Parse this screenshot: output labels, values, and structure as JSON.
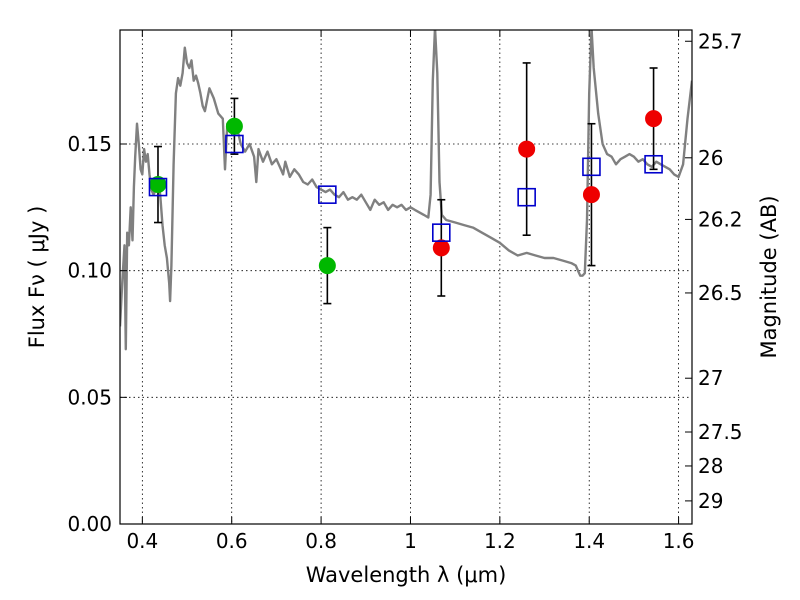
{
  "chart_data": {
    "type": "scatter",
    "xlabel": "Wavelength  λ (μm)",
    "ylabel": "Flux  Fν  ( μJy )",
    "ylabel_right": "Magnitude (AB)",
    "xlim": [
      0.35,
      1.63
    ],
    "ylim": [
      0.0,
      0.195
    ],
    "grid": true,
    "x_ticks": [
      0.4,
      0.6,
      0.8,
      1.0,
      1.2,
      1.4,
      1.6
    ],
    "x_tick_labels": [
      "0.4",
      "0.6",
      "0.8",
      "1",
      "1.2",
      "1.4",
      "1.6"
    ],
    "y_ticks": [
      0.0,
      0.05,
      0.1,
      0.15
    ],
    "y_tick_labels": [
      "0.00",
      "0.05",
      "0.10",
      "0.15"
    ],
    "right_ticks": [
      {
        "label": "25.7",
        "mag": 25.7
      },
      {
        "label": "26",
        "mag": 26.0
      },
      {
        "label": "26.2",
        "mag": 26.2
      },
      {
        "label": "26.5",
        "mag": 26.5
      },
      {
        "label": "27",
        "mag": 27.0
      },
      {
        "label": "27.5",
        "mag": 27.5
      },
      {
        "label": "28",
        "mag": 28.0
      },
      {
        "label": "29",
        "mag": 29.0
      }
    ],
    "colors": {
      "sed": "#808080",
      "green": "#00b800",
      "red": "#ee0000",
      "model": "#0000cc",
      "errorbar": "#000000"
    },
    "observed_points": [
      {
        "x": 0.435,
        "y": 0.134,
        "err": 0.015,
        "color": "green"
      },
      {
        "x": 0.606,
        "y": 0.157,
        "err": 0.011,
        "color": "green"
      },
      {
        "x": 0.814,
        "y": 0.102,
        "err": 0.015,
        "color": "green"
      },
      {
        "x": 1.069,
        "y": 0.109,
        "err": 0.019,
        "color": "red"
      },
      {
        "x": 1.26,
        "y": 0.148,
        "err": 0.034,
        "color": "red"
      },
      {
        "x": 1.405,
        "y": 0.13,
        "err": 0.028,
        "color": "red"
      },
      {
        "x": 1.544,
        "y": 0.16,
        "err": 0.02,
        "color": "red"
      }
    ],
    "model_points": [
      {
        "x": 0.435,
        "y": 0.133
      },
      {
        "x": 0.606,
        "y": 0.15
      },
      {
        "x": 0.814,
        "y": 0.13
      },
      {
        "x": 1.069,
        "y": 0.115
      },
      {
        "x": 1.26,
        "y": 0.129
      },
      {
        "x": 1.405,
        "y": 0.141
      },
      {
        "x": 1.544,
        "y": 0.142
      }
    ],
    "sed": {
      "x": [
        0.35,
        0.355,
        0.36,
        0.363,
        0.366,
        0.37,
        0.374,
        0.378,
        0.381,
        0.384,
        0.388,
        0.392,
        0.396,
        0.4,
        0.404,
        0.408,
        0.412,
        0.416,
        0.42,
        0.425,
        0.43,
        0.435,
        0.44,
        0.445,
        0.45,
        0.455,
        0.46,
        0.462,
        0.465,
        0.47,
        0.475,
        0.48,
        0.485,
        0.49,
        0.495,
        0.5,
        0.505,
        0.51,
        0.515,
        0.52,
        0.525,
        0.53,
        0.535,
        0.54,
        0.55,
        0.56,
        0.57,
        0.58,
        0.585,
        0.59,
        0.6,
        0.61,
        0.62,
        0.63,
        0.64,
        0.65,
        0.655,
        0.66,
        0.67,
        0.68,
        0.69,
        0.7,
        0.71,
        0.715,
        0.72,
        0.73,
        0.74,
        0.75,
        0.76,
        0.77,
        0.78,
        0.79,
        0.8,
        0.81,
        0.82,
        0.83,
        0.84,
        0.85,
        0.86,
        0.87,
        0.88,
        0.89,
        0.9,
        0.91,
        0.92,
        0.93,
        0.94,
        0.95,
        0.96,
        0.97,
        0.98,
        0.99,
        1.0,
        1.01,
        1.02,
        1.03,
        1.04,
        1.045,
        1.05,
        1.055,
        1.06,
        1.065,
        1.07,
        1.08,
        1.1,
        1.12,
        1.14,
        1.16,
        1.18,
        1.2,
        1.22,
        1.24,
        1.26,
        1.28,
        1.3,
        1.32,
        1.34,
        1.36,
        1.37,
        1.375,
        1.38,
        1.385,
        1.39,
        1.395,
        1.4,
        1.405,
        1.41,
        1.42,
        1.43,
        1.44,
        1.45,
        1.46,
        1.47,
        1.48,
        1.49,
        1.5,
        1.51,
        1.52,
        1.53,
        1.54,
        1.55,
        1.56,
        1.57,
        1.58,
        1.59,
        1.6,
        1.61,
        1.62,
        1.63
      ],
      "y": [
        0.078,
        0.095,
        0.11,
        0.069,
        0.115,
        0.11,
        0.125,
        0.112,
        0.133,
        0.145,
        0.158,
        0.15,
        0.14,
        0.138,
        0.148,
        0.143,
        0.146,
        0.138,
        0.132,
        0.13,
        0.132,
        0.135,
        0.13,
        0.118,
        0.11,
        0.105,
        0.095,
        0.088,
        0.102,
        0.142,
        0.17,
        0.176,
        0.173,
        0.178,
        0.188,
        0.182,
        0.18,
        0.183,
        0.175,
        0.177,
        0.174,
        0.17,
        0.165,
        0.163,
        0.172,
        0.168,
        0.162,
        0.16,
        0.14,
        0.158,
        0.157,
        0.158,
        0.15,
        0.147,
        0.15,
        0.145,
        0.135,
        0.148,
        0.143,
        0.147,
        0.142,
        0.144,
        0.14,
        0.138,
        0.143,
        0.137,
        0.14,
        0.138,
        0.135,
        0.134,
        0.136,
        0.133,
        0.132,
        0.131,
        0.132,
        0.13,
        0.129,
        0.131,
        0.128,
        0.129,
        0.128,
        0.13,
        0.127,
        0.124,
        0.128,
        0.126,
        0.127,
        0.124,
        0.126,
        0.125,
        0.126,
        0.124,
        0.125,
        0.124,
        0.123,
        0.122,
        0.121,
        0.13,
        0.175,
        0.196,
        0.178,
        0.135,
        0.122,
        0.12,
        0.119,
        0.118,
        0.117,
        0.115,
        0.113,
        0.111,
        0.108,
        0.106,
        0.107,
        0.106,
        0.105,
        0.105,
        0.104,
        0.103,
        0.102,
        0.1,
        0.098,
        0.098,
        0.099,
        0.12,
        0.17,
        0.196,
        0.18,
        0.162,
        0.15,
        0.146,
        0.145,
        0.142,
        0.144,
        0.145,
        0.146,
        0.145,
        0.143,
        0.144,
        0.142,
        0.141,
        0.143,
        0.142,
        0.141,
        0.14,
        0.138,
        0.137,
        0.142,
        0.16,
        0.175
      ]
    }
  }
}
